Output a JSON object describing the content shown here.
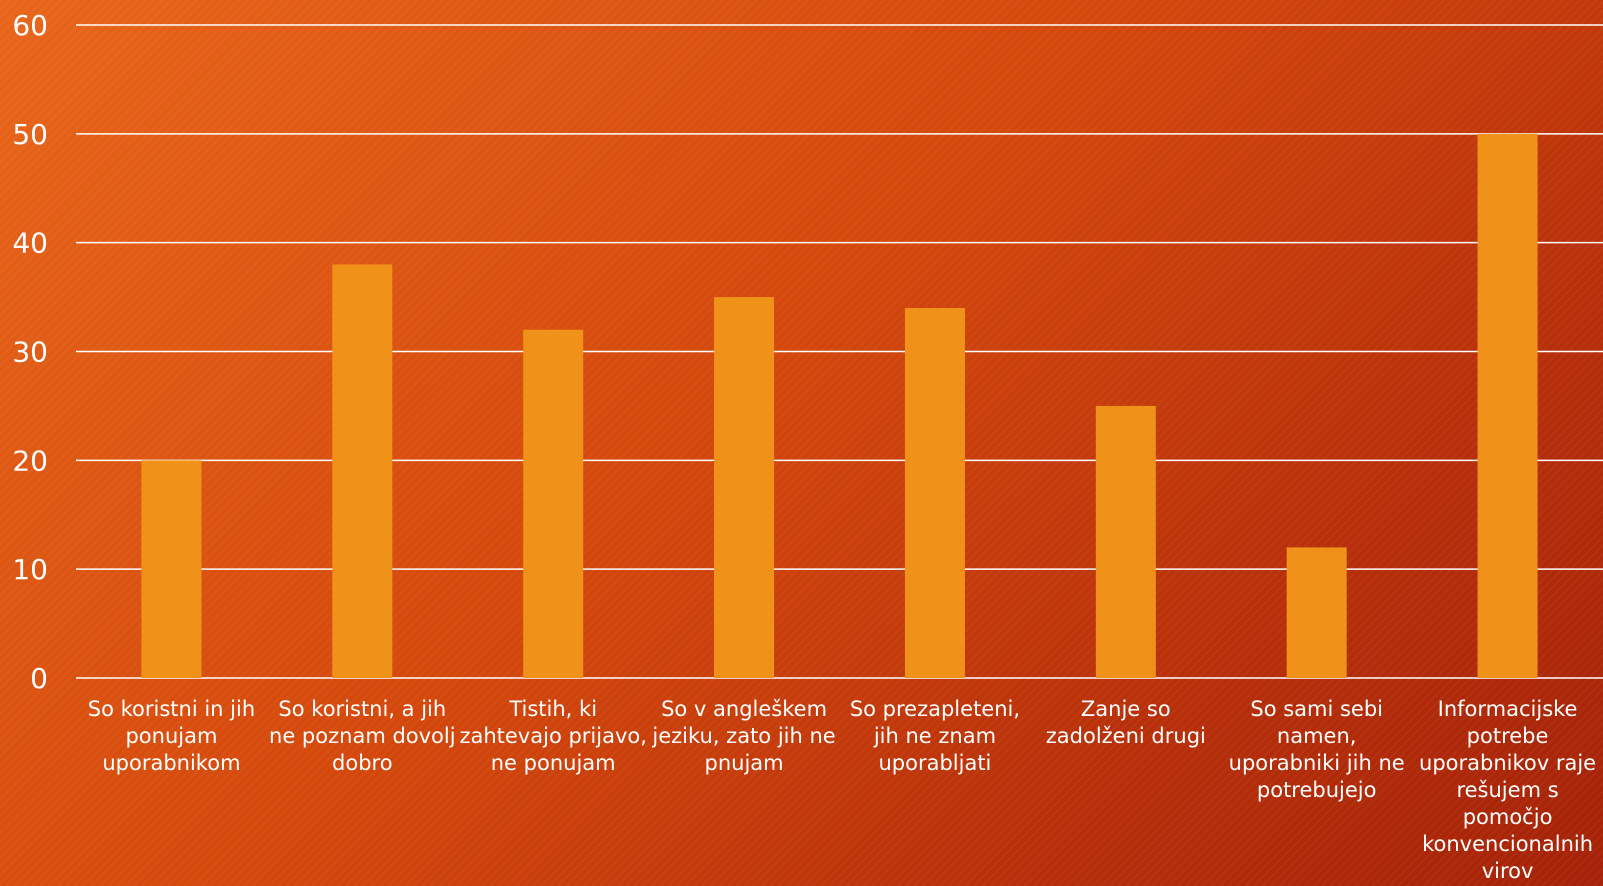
{
  "chart_data": {
    "type": "bar",
    "categories": [
      "So koristni in jih ponujam uporabnikom",
      "So koristni, a jih ne poznam dovolj dobro",
      "Tistih, ki zahtevajo prijavo, ne ponujam",
      "So v angleškem jeziku, zato jih ne pnujam",
      "So prezapleteni, jih ne znam uporabljati",
      "Zanje so zadolženi drugi",
      "So sami sebi namen, uporabniki jih ne potrebujejo",
      "Informacijske potrebe uporabnikov raje rešujem s pomočjo konvencionalnih virov"
    ],
    "values": [
      20,
      38,
      32,
      35,
      34,
      25,
      12,
      50
    ],
    "yticks": [
      "0",
      "10",
      "20",
      "30",
      "40",
      "50",
      "60"
    ],
    "ylim": [
      0,
      60
    ],
    "grid": true,
    "bar_color": "#f0921a",
    "grid_color": "#ffffff",
    "text_color": "#ffffff"
  }
}
